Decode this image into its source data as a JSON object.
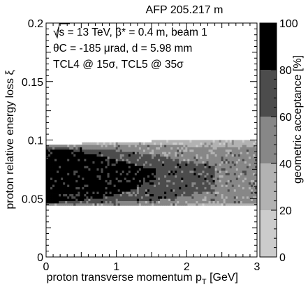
{
  "chart_data": {
    "type": "heatmap",
    "title": "AFP 205.217 m",
    "xlabel": "proton transverse momentum p",
    "xlabel_sub": "T",
    "xlabel_unit": "[GeV]",
    "ylabel": "proton relative energy loss ξ",
    "zlabel": "geometric acceptance [%]",
    "xlim": [
      0,
      3
    ],
    "ylim": [
      0,
      0.2
    ],
    "zlim": [
      0,
      100
    ],
    "x_ticks": [
      "0",
      "1",
      "2",
      "3"
    ],
    "y_ticks": [
      "0",
      "0.05",
      "0.1",
      "0.15",
      "0.2"
    ],
    "z_ticks": [
      "0",
      "20",
      "40",
      "60",
      "80",
      "100"
    ],
    "annotations": [
      "√s = 13 TeV, β* = 0.4 m, beam 1",
      "θC = -185 μrad, d = 5.98 mm",
      "TCL4 @ 15σ, TCL5 @ 35σ"
    ],
    "colorscale": [
      {
        "from": 0,
        "to": 20,
        "color": "#cccccc"
      },
      {
        "from": 20,
        "to": 40,
        "color": "#b2b2b2"
      },
      {
        "from": 40,
        "to": 60,
        "color": "#878787"
      },
      {
        "from": 60,
        "to": 80,
        "color": "#4c4c4c"
      },
      {
        "from": 80,
        "to": 100,
        "color": "#000000"
      }
    ],
    "acceptance_bands": [
      {
        "range": "80-100",
        "pt": [
          0.0,
          0.4,
          0.8,
          1.2,
          1.55
        ],
        "xi_low": [
          0.046,
          0.048,
          0.051,
          0.057,
          0.066
        ],
        "xi_high": [
          0.093,
          0.091,
          0.086,
          0.08,
          0.075
        ]
      },
      {
        "range": "60-80",
        "pt": [
          0.0,
          0.5,
          1.0,
          1.5,
          2.0,
          2.4
        ],
        "xi_low": [
          0.045,
          0.046,
          0.047,
          0.048,
          0.052,
          0.057
        ],
        "xi_high": [
          0.094,
          0.093,
          0.091,
          0.087,
          0.082,
          0.078
        ]
      },
      {
        "range": "40-60",
        "pt": [
          0.0,
          0.5,
          1.0,
          1.5,
          2.0,
          2.5,
          3.0
        ],
        "xi_low": [
          0.044,
          0.044,
          0.044,
          0.045,
          0.045,
          0.046,
          0.047
        ],
        "xi_high": [
          0.096,
          0.096,
          0.096,
          0.096,
          0.095,
          0.094,
          0.093
        ]
      },
      {
        "range": "20-40",
        "pt": [
          0.0,
          0.5,
          1.0,
          1.5,
          2.0,
          2.5,
          3.0
        ],
        "xi_low": [
          0.044,
          0.044,
          0.044,
          0.044,
          0.044,
          0.044,
          0.044
        ],
        "xi_high": [
          0.096,
          0.097,
          0.098,
          0.099,
          0.1,
          0.1,
          0.1
        ]
      }
    ]
  }
}
